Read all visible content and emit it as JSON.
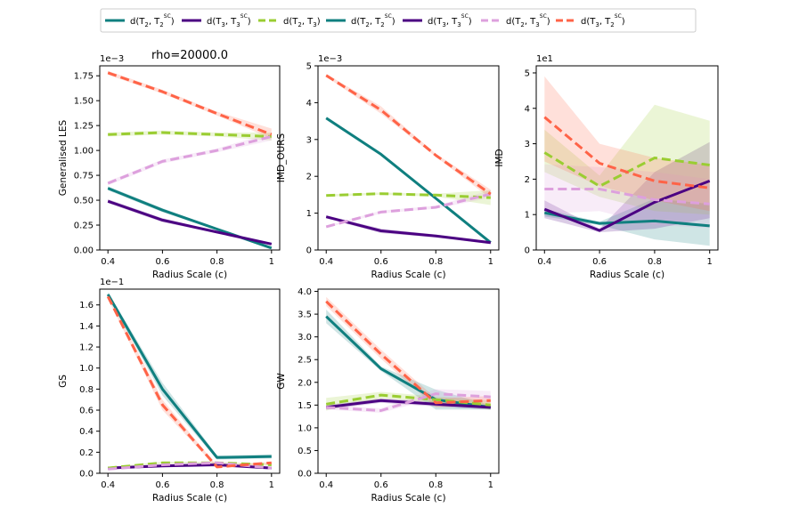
{
  "figure_title": "rho=20000.0",
  "legend": [
    {
      "name": "d(T2,T2SC)",
      "label_main": "d(T",
      "sub1": "2",
      "label_mid": ", T",
      "sub2": "2",
      "sup2": "SC",
      "label_end": ")",
      "color": "#0f7f7f",
      "dash": "solid"
    },
    {
      "name": "d(T3,T3SC)",
      "label_main": "d(T",
      "sub1": "3",
      "label_mid": ", T",
      "sub2": "3",
      "sup2": "SC",
      "label_end": ")",
      "color": "#4b0082",
      "dash": "solid"
    },
    {
      "name": "d(T2,T3)",
      "label_main": "d(T",
      "sub1": "2",
      "label_mid": ", T",
      "sub2": "3",
      "sup2": "",
      "label_end": ")",
      "color": "#9acd32",
      "dash": "dashed"
    },
    {
      "name": "d(T2,T3SC)",
      "label_main": "d(T",
      "sub1": "2",
      "label_mid": ", T",
      "sub2": "3",
      "sup2": "SC",
      "label_end": ")",
      "color": "#dda0dd",
      "dash": "dashed"
    },
    {
      "name": "d(T3,T2SC)",
      "label_main": "d(T",
      "sub1": "3",
      "label_mid": ", T",
      "sub2": "2",
      "sup2": "SC",
      "label_end": ")",
      "color": "#ff6347",
      "dash": "dashed"
    }
  ],
  "chart_data": [
    {
      "type": "line",
      "id": "les",
      "ylabel": "Generalised LES",
      "xlabel": "Radius Scale (c)",
      "multiplier": "1e−3",
      "x": [
        0.4,
        0.6,
        0.8,
        1.0
      ],
      "xticks": [
        "0.4",
        "0.6",
        "0.8",
        "1"
      ],
      "ylim": [
        0,
        1.85
      ],
      "yticks": [
        "0.00",
        "0.25",
        "0.50",
        "0.75",
        "1.00",
        "1.25",
        "1.50",
        "1.75"
      ],
      "series": [
        {
          "name": "d(T2,T2SC)",
          "values": [
            0.62,
            0.4,
            0.21,
            0.02
          ],
          "lower": [
            0.6,
            0.38,
            0.2,
            0.01
          ],
          "upper": [
            0.64,
            0.42,
            0.22,
            0.03
          ]
        },
        {
          "name": "d(T3,T3SC)",
          "values": [
            0.49,
            0.3,
            0.18,
            0.06
          ],
          "lower": [
            0.47,
            0.28,
            0.17,
            0.05
          ],
          "upper": [
            0.51,
            0.32,
            0.19,
            0.07
          ]
        },
        {
          "name": "d(T2,T3)",
          "values": [
            1.16,
            1.18,
            1.16,
            1.14
          ],
          "lower": [
            1.14,
            1.16,
            1.14,
            1.1
          ],
          "upper": [
            1.18,
            1.2,
            1.18,
            1.18
          ]
        },
        {
          "name": "d(T2,T3SC)",
          "values": [
            0.67,
            0.89,
            1.0,
            1.14
          ],
          "lower": [
            0.65,
            0.87,
            0.98,
            1.1
          ],
          "upper": [
            0.69,
            0.91,
            1.02,
            1.18
          ]
        },
        {
          "name": "d(T3,T2SC)",
          "values": [
            1.78,
            1.59,
            1.37,
            1.16
          ],
          "lower": [
            1.76,
            1.57,
            1.35,
            1.12
          ],
          "upper": [
            1.8,
            1.61,
            1.39,
            1.22
          ]
        }
      ]
    },
    {
      "type": "line",
      "id": "imd_ours",
      "ylabel": "IMD_OURS",
      "xlabel": "Radius Scale (c)",
      "multiplier": "1e−3",
      "x": [
        0.4,
        0.6,
        0.8,
        1.0
      ],
      "xticks": [
        "0.4",
        "0.6",
        "0.8",
        "1"
      ],
      "ylim": [
        0,
        5.0
      ],
      "yticks": [
        "0",
        "1",
        "2",
        "3",
        "4",
        "5"
      ],
      "series": [
        {
          "name": "d(T2,T2SC)",
          "values": [
            3.58,
            2.6,
            1.4,
            0.2
          ],
          "lower": [
            3.54,
            2.56,
            1.36,
            0.16
          ],
          "upper": [
            3.62,
            2.64,
            1.44,
            0.24
          ]
        },
        {
          "name": "d(T3,T3SC)",
          "values": [
            0.9,
            0.52,
            0.38,
            0.2
          ],
          "lower": [
            0.86,
            0.46,
            0.34,
            0.16
          ],
          "upper": [
            0.94,
            0.58,
            0.42,
            0.24
          ]
        },
        {
          "name": "d(T2,T3)",
          "values": [
            1.48,
            1.53,
            1.49,
            1.42
          ],
          "lower": [
            1.45,
            1.5,
            1.45,
            1.22
          ],
          "upper": [
            1.51,
            1.56,
            1.53,
            1.62
          ]
        },
        {
          "name": "d(T2,T3SC)",
          "values": [
            0.63,
            1.03,
            1.16,
            1.52
          ],
          "lower": [
            0.6,
            0.99,
            1.12,
            1.42
          ],
          "upper": [
            0.66,
            1.07,
            1.2,
            1.62
          ]
        },
        {
          "name": "d(T3,T2SC)",
          "values": [
            4.74,
            3.8,
            2.57,
            1.52
          ],
          "lower": [
            4.7,
            3.7,
            2.53,
            1.4
          ],
          "upper": [
            4.78,
            3.9,
            2.61,
            1.64
          ]
        }
      ]
    },
    {
      "type": "line",
      "id": "imd",
      "ylabel": "IMD",
      "xlabel": "Radius Scale (c)",
      "multiplier": "1e1",
      "x": [
        0.4,
        0.6,
        0.8,
        1.0
      ],
      "xticks": [
        "0.4",
        "0.6",
        "0.8",
        "1"
      ],
      "ylim": [
        0,
        5.2
      ],
      "yticks": [
        "0",
        "1",
        "2",
        "3",
        "4",
        "5"
      ],
      "series": [
        {
          "name": "d(T2,T2SC)",
          "values": [
            1.05,
            0.75,
            0.82,
            0.68
          ],
          "lower": [
            0.95,
            0.7,
            0.3,
            0.12
          ],
          "upper": [
            1.15,
            0.8,
            1.45,
            1.3
          ]
        },
        {
          "name": "d(T3,T3SC)",
          "values": [
            1.15,
            0.55,
            1.35,
            1.95
          ],
          "lower": [
            0.9,
            0.5,
            0.6,
            0.9
          ],
          "upper": [
            1.4,
            0.6,
            2.2,
            3.05
          ]
        },
        {
          "name": "d(T2,T3)",
          "values": [
            2.75,
            1.8,
            2.6,
            2.4
          ],
          "lower": [
            2.2,
            1.5,
            1.1,
            1.0
          ],
          "upper": [
            3.4,
            2.1,
            4.1,
            3.65
          ]
        },
        {
          "name": "d(T2,T3SC)",
          "values": [
            1.72,
            1.72,
            1.42,
            1.3
          ],
          "lower": [
            1.02,
            1.1,
            0.7,
            0.62
          ],
          "upper": [
            2.42,
            2.34,
            2.2,
            2.0
          ]
        },
        {
          "name": "d(T3,T2SC)",
          "values": [
            3.75,
            2.45,
            1.95,
            1.75
          ],
          "lower": [
            2.5,
            1.8,
            1.4,
            1.1
          ],
          "upper": [
            4.9,
            3.0,
            2.6,
            2.4
          ]
        }
      ]
    },
    {
      "type": "line",
      "id": "gs",
      "ylabel": "GS",
      "xlabel": "Radius Scale (c)",
      "multiplier": "1e−1",
      "x": [
        0.4,
        0.6,
        0.8,
        1.0
      ],
      "xticks": [
        "0.4",
        "0.6",
        "0.8",
        "1"
      ],
      "ylim": [
        0,
        1.75
      ],
      "yticks": [
        "0.0",
        "0.2",
        "0.4",
        "0.6",
        "0.8",
        "1.0",
        "1.2",
        "1.4",
        "1.6"
      ],
      "series": [
        {
          "name": "d(T2,T2SC)",
          "values": [
            1.7,
            0.8,
            0.15,
            0.16
          ],
          "lower": [
            1.68,
            0.74,
            0.13,
            0.14
          ],
          "upper": [
            1.72,
            0.86,
            0.17,
            0.18
          ]
        },
        {
          "name": "d(T3,T3SC)",
          "values": [
            0.05,
            0.07,
            0.08,
            0.05
          ],
          "lower": [
            0.04,
            0.06,
            0.07,
            0.04
          ],
          "upper": [
            0.06,
            0.08,
            0.09,
            0.06
          ]
        },
        {
          "name": "d(T2,T3)",
          "values": [
            0.05,
            0.1,
            0.1,
            0.08
          ],
          "lower": [
            0.04,
            0.09,
            0.09,
            0.07
          ],
          "upper": [
            0.06,
            0.11,
            0.11,
            0.09
          ]
        },
        {
          "name": "d(T2,T3SC)",
          "values": [
            0.04,
            0.08,
            0.1,
            0.05
          ],
          "lower": [
            0.03,
            0.07,
            0.09,
            0.04
          ],
          "upper": [
            0.05,
            0.09,
            0.11,
            0.06
          ]
        },
        {
          "name": "d(T3,T2SC)",
          "values": [
            1.68,
            0.65,
            0.06,
            0.1
          ],
          "lower": [
            1.66,
            0.6,
            0.05,
            0.09
          ],
          "upper": [
            1.7,
            0.7,
            0.07,
            0.11
          ]
        }
      ]
    },
    {
      "type": "line",
      "id": "gw",
      "ylabel": "GW",
      "xlabel": "Radius Scale (c)",
      "multiplier": "",
      "x": [
        0.4,
        0.6,
        0.8,
        1.0
      ],
      "xticks": [
        "0.4",
        "0.6",
        "0.8",
        "1"
      ],
      "ylim": [
        0,
        4.05
      ],
      "yticks": [
        "0.0",
        "0.5",
        "1.0",
        "1.5",
        "2.0",
        "2.5",
        "3.0",
        "3.5",
        "4.0"
      ],
      "series": [
        {
          "name": "d(T2,T2SC)",
          "values": [
            3.45,
            2.3,
            1.62,
            1.45
          ],
          "lower": [
            3.3,
            2.25,
            1.4,
            1.4
          ],
          "upper": [
            3.6,
            2.35,
            1.84,
            1.5
          ]
        },
        {
          "name": "d(T3,T3SC)",
          "values": [
            1.45,
            1.6,
            1.52,
            1.45
          ],
          "lower": [
            1.4,
            1.55,
            1.47,
            1.4
          ],
          "upper": [
            1.5,
            1.65,
            1.57,
            1.5
          ]
        },
        {
          "name": "d(T2,T3)",
          "values": [
            1.52,
            1.72,
            1.62,
            1.5
          ],
          "lower": [
            1.38,
            1.65,
            1.55,
            1.4
          ],
          "upper": [
            1.66,
            1.79,
            1.69,
            1.6
          ]
        },
        {
          "name": "d(T2,T3SC)",
          "values": [
            1.45,
            1.38,
            1.75,
            1.68
          ],
          "lower": [
            1.4,
            1.33,
            1.65,
            1.55
          ],
          "upper": [
            1.5,
            1.43,
            1.85,
            1.81
          ]
        },
        {
          "name": "d(T3,T2SC)",
          "values": [
            3.78,
            2.62,
            1.55,
            1.6
          ],
          "lower": [
            3.68,
            2.52,
            1.45,
            1.5
          ],
          "upper": [
            3.88,
            2.72,
            1.65,
            1.7
          ]
        }
      ]
    }
  ]
}
